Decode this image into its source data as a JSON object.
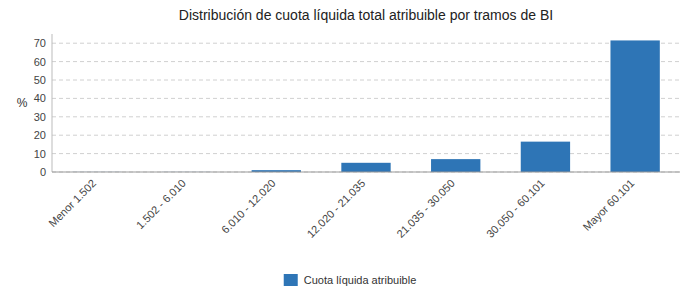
{
  "chart_data": {
    "type": "bar",
    "title": "Distribución de cuota líquida total atribuible por tramos de BI",
    "ylabel": "%",
    "categories": [
      "Menor 1.502",
      "1.502 - 6.010",
      "6.010 - 12.020",
      "12.020 - 21.035",
      "21.035 - 30.050",
      "30.050 - 60.101",
      "Mayor 60.101"
    ],
    "series": [
      {
        "name": "Cuota líquida atribuible",
        "color": "#2e75b6",
        "values": [
          0.05,
          0.05,
          1.0,
          5.0,
          7.0,
          16.5,
          71.5
        ]
      }
    ],
    "ylim": [
      0,
      75
    ],
    "yticks": [
      0,
      10,
      20,
      30,
      40,
      50,
      60,
      70
    ],
    "grid": true,
    "legend": "bottom"
  }
}
